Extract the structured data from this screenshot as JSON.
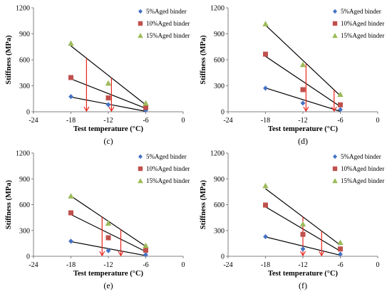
{
  "colors": {
    "s5": "#4472C4",
    "s10": "#C0504D",
    "s15": "#9BBB59",
    "trend": "#000000",
    "arrow": "#E8261E",
    "axis": "#808080"
  },
  "chart_data": [
    {
      "type": "scatter",
      "label": "(c)",
      "xlabel": "Test temperature (°C)",
      "ylabel": "Stiffness (MPa)",
      "xlim": [
        -24,
        0
      ],
      "ylim": [
        0,
        1200
      ],
      "xticks": [
        "-24",
        "-18",
        "-12",
        "-6",
        "0"
      ],
      "yticks": [
        "0",
        "300",
        "600",
        "900",
        "1200"
      ],
      "legend_position": "top-right",
      "series": [
        {
          "name": "5%Aged binder",
          "marker": "diamond",
          "x": [
            -18,
            -12,
            -6
          ],
          "y": [
            175,
            82,
            18
          ],
          "trend": [
            [
              -18,
              170
            ],
            [
              -6,
              5
            ]
          ]
        },
        {
          "name": "10%Aged binder",
          "marker": "square",
          "x": [
            -18,
            -12,
            -6
          ],
          "y": [
            395,
            160,
            50
          ],
          "trend": [
            [
              -18,
              380
            ],
            [
              -6,
              40
            ]
          ]
        },
        {
          "name": "15%Aged binder",
          "marker": "triangle",
          "x": [
            -18,
            -12,
            -6
          ],
          "y": [
            790,
            330,
            100
          ],
          "trend": [
            [
              -18,
              760
            ],
            [
              -6,
              80
            ]
          ]
        }
      ],
      "arrows": [
        [
          -15.5,
          -15.5
        ],
        [
          -11.5,
          -11.5
        ]
      ]
    },
    {
      "type": "scatter",
      "label": "(d)",
      "xlabel": "Test temperature (°C)",
      "ylabel": "Stiffness (MPa)",
      "xlim": [
        -24,
        0
      ],
      "ylim": [
        0,
        1200
      ],
      "xticks": [
        "-24",
        "-18",
        "-12",
        "-6",
        "0"
      ],
      "yticks": [
        "0",
        "300",
        "600",
        "900",
        "1200"
      ],
      "legend_position": "top-right",
      "series": [
        {
          "name": "5%Aged binder",
          "marker": "diamond",
          "x": [
            -18,
            -12,
            -6
          ],
          "y": [
            272,
            100,
            25
          ],
          "trend": [
            [
              -18,
              275
            ],
            [
              -6,
              5
            ]
          ]
        },
        {
          "name": "10%Aged binder",
          "marker": "square",
          "x": [
            -18,
            -12,
            -6
          ],
          "y": [
            665,
            255,
            80
          ],
          "trend": [
            [
              -18,
              640
            ],
            [
              -6,
              60
            ]
          ]
        },
        {
          "name": "15%Aged binder",
          "marker": "triangle",
          "x": [
            -18,
            -12,
            -6
          ],
          "y": [
            1015,
            545,
            200
          ],
          "trend": [
            [
              -18,
              1000
            ],
            [
              -6,
              185
            ]
          ]
        }
      ],
      "arrows": [
        [
          -11.5,
          -11.5
        ],
        [
          -7,
          -7
        ]
      ]
    },
    {
      "type": "scatter",
      "label": "(e)",
      "xlabel": "Test temperature (°C)",
      "ylabel": "Stiffness (MPa)",
      "xlim": [
        -24,
        0
      ],
      "ylim": [
        0,
        1200
      ],
      "xticks": [
        "-24",
        "-18",
        "-12",
        "-6",
        "0"
      ],
      "yticks": [
        "0",
        "300",
        "600",
        "900",
        "1200"
      ],
      "legend_position": "top-right",
      "series": [
        {
          "name": "5%Aged binder",
          "marker": "diamond",
          "x": [
            -18,
            -12,
            -6
          ],
          "y": [
            175,
            65,
            18
          ],
          "trend": [
            [
              -18,
              170
            ],
            [
              -6,
              8
            ]
          ]
        },
        {
          "name": "10%Aged binder",
          "marker": "square",
          "x": [
            -18,
            -12,
            -6
          ],
          "y": [
            505,
            215,
            70
          ],
          "trend": [
            [
              -18,
              485
            ],
            [
              -6,
              55
            ]
          ]
        },
        {
          "name": "15%Aged binder",
          "marker": "triangle",
          "x": [
            -18,
            -12,
            -6
          ],
          "y": [
            700,
            385,
            125
          ],
          "trend": [
            [
              -18,
              700
            ],
            [
              -6,
              115
            ]
          ]
        }
      ],
      "arrows": [
        [
          -13,
          -13
        ],
        [
          -10,
          -10
        ]
      ]
    },
    {
      "type": "scatter",
      "label": "(f)",
      "xlabel": "Test temperature (°C)",
      "ylabel": "Stiffness (MPa)",
      "xlim": [
        -24,
        0
      ],
      "ylim": [
        0,
        1200
      ],
      "xticks": [
        "-24",
        "-18",
        "-12",
        "-6",
        "0"
      ],
      "yticks": [
        "0",
        "300",
        "600",
        "900",
        "1200"
      ],
      "legend_position": "top-right",
      "series": [
        {
          "name": "5%Aged binder",
          "marker": "diamond",
          "x": [
            -18,
            -12,
            -6
          ],
          "y": [
            228,
            85,
            25
          ],
          "trend": [
            [
              -18,
              225
            ],
            [
              -6,
              12
            ]
          ]
        },
        {
          "name": "10%Aged binder",
          "marker": "square",
          "x": [
            -18,
            -12,
            -6
          ],
          "y": [
            595,
            255,
            85
          ],
          "trend": [
            [
              -18,
              575
            ],
            [
              -6,
              60
            ]
          ]
        },
        {
          "name": "15%Aged binder",
          "marker": "triangle",
          "x": [
            -18,
            -12,
            -6
          ],
          "y": [
            820,
            375,
            160
          ],
          "trend": [
            [
              -18,
              785
            ],
            [
              -6,
              130
            ]
          ]
        }
      ],
      "arrows": [
        [
          -12,
          -12
        ],
        [
          -9,
          -9
        ]
      ]
    }
  ]
}
